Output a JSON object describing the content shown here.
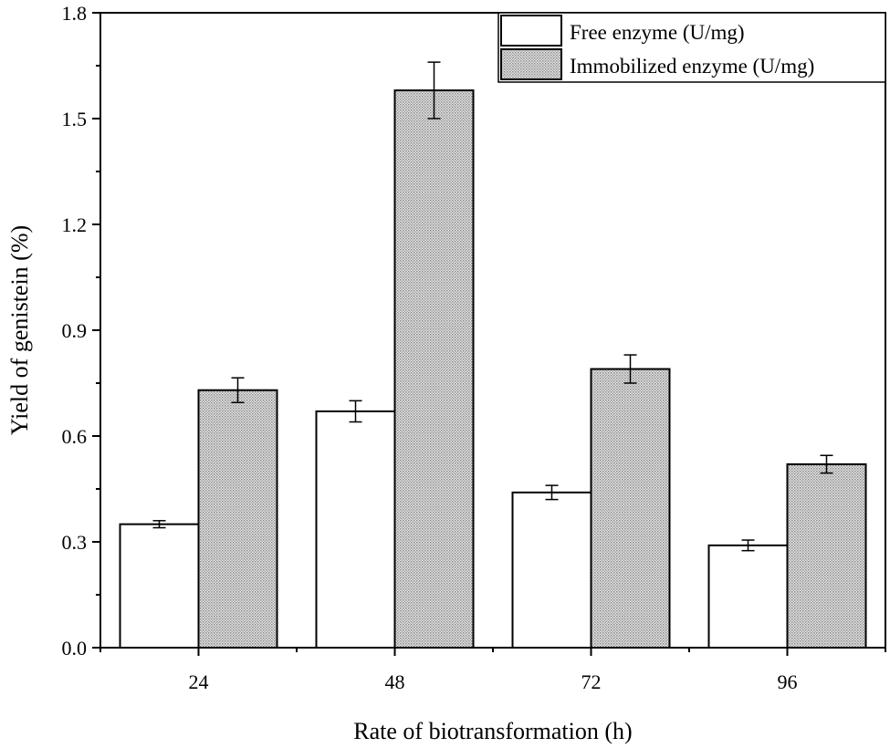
{
  "chart_data": {
    "type": "bar",
    "title": "",
    "xlabel": "Rate of biotransformation (h)",
    "ylabel": "Yield of genistein (%)",
    "categories": [
      "24",
      "48",
      "72",
      "96"
    ],
    "ylim": [
      0,
      1.8
    ],
    "yticks": [
      "0.0",
      "0.3",
      "0.6",
      "0.9",
      "1.2",
      "1.5",
      "1.8"
    ],
    "series": [
      {
        "name": "Free enzyme (U/mg)",
        "fill": "#ffffff",
        "pattern": "none",
        "values": [
          0.35,
          0.67,
          0.44,
          0.29
        ],
        "errors": [
          0.01,
          0.03,
          0.02,
          0.015
        ]
      },
      {
        "name": "Immobilized enzyme (U/mg)",
        "fill": "#d4d4d4",
        "pattern": "dots",
        "values": [
          0.73,
          1.58,
          0.79,
          0.52
        ],
        "errors": [
          0.035,
          0.08,
          0.04,
          0.025
        ]
      }
    ],
    "legend_position": "top-right",
    "grid": false
  }
}
